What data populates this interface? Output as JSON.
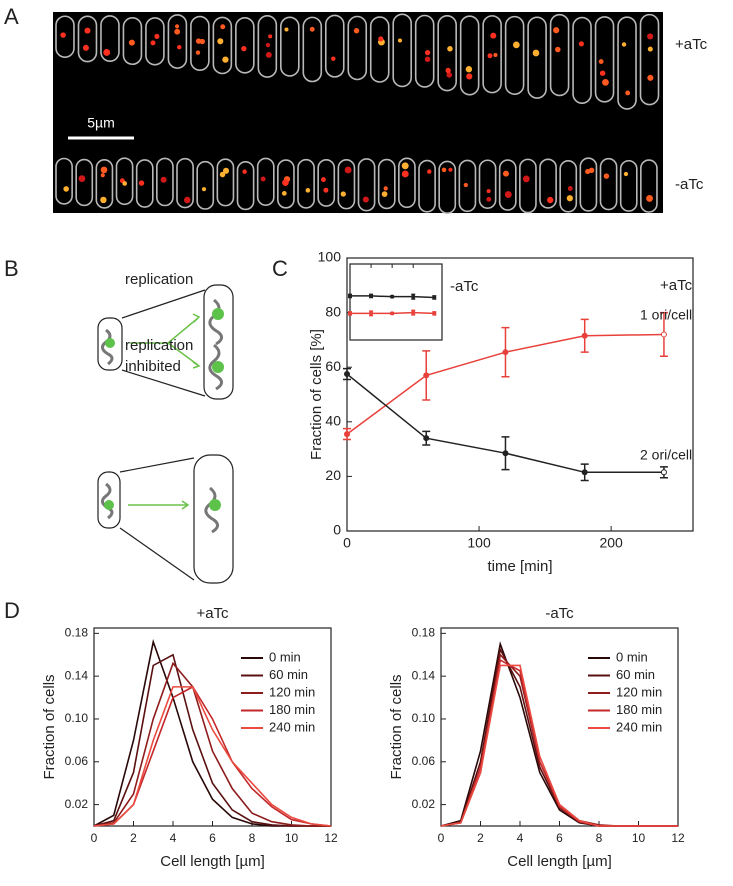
{
  "panel_labels": [
    "A",
    "B",
    "C",
    "D"
  ],
  "panel_a": {
    "conditions": [
      "+aTc",
      "-aTc"
    ],
    "scale_bar": "5µm"
  },
  "panel_b": {
    "top_label": "replication",
    "bottom_label": [
      "replication",
      "inhibited"
    ]
  },
  "chart_data": [
    {
      "type": "line",
      "ylabel": "Fraction of cells [%]",
      "xlabel": "time [min]",
      "annotation": "+aTc",
      "x": [
        0,
        60,
        120,
        180,
        240
      ],
      "xlim": [
        0,
        262
      ],
      "xticks": [
        0,
        100,
        200
      ],
      "ylim": [
        0,
        100
      ],
      "yticks": [
        0,
        20,
        40,
        60,
        80,
        100
      ],
      "series": [
        {
          "name": "1 ori/cell",
          "color": "#e8403a",
          "values": [
            35.5,
            57,
            65.5,
            71.5,
            72
          ],
          "errors": [
            2,
            9,
            9,
            6,
            8
          ]
        },
        {
          "name": "2 ori/cell",
          "color": "#222222",
          "values": [
            57.5,
            34,
            28.5,
            21.5,
            21.5
          ],
          "errors": [
            2,
            2.5,
            6,
            3,
            2
          ]
        }
      ]
    },
    {
      "type": "line",
      "annotation": "-aTc",
      "x": [
        0,
        60,
        120,
        180,
        240
      ],
      "xlim": [
        0,
        262
      ],
      "ylim": [
        0,
        100
      ],
      "series": [
        {
          "color": "#222222",
          "values": [
            58,
            58,
            57,
            57,
            56
          ],
          "errors": [
            2,
            2,
            1,
            3,
            2
          ]
        },
        {
          "color": "#e8403a",
          "values": [
            35,
            35,
            35,
            36,
            35
          ],
          "errors": [
            2,
            3,
            1,
            3,
            2
          ]
        }
      ]
    },
    {
      "type": "line",
      "title": "+aTc",
      "xlabel": "Cell length [µm]",
      "ylabel": "Fraction of cells",
      "x": [
        0,
        1,
        2,
        3,
        4,
        5,
        6,
        7,
        8,
        9,
        10,
        11,
        12
      ],
      "xlim": [
        0,
        12
      ],
      "xticks": [
        0,
        2,
        4,
        6,
        8,
        10,
        12
      ],
      "ylim": [
        0,
        0.185
      ],
      "yticks": [
        0.02,
        0.06,
        {
          "value": 0.1,
          "label": "0.10"
        },
        0.14,
        0.18
      ],
      "legend": "upper right",
      "series": [
        {
          "name": "0 min",
          "color": "#2a0808",
          "values": [
            0,
            0.01,
            0.08,
            0.172,
            0.12,
            0.06,
            0.025,
            0.008,
            0.002,
            0,
            0,
            0,
            0
          ]
        },
        {
          "name": "60 min",
          "color": "#5a1010",
          "values": [
            0,
            0.005,
            0.05,
            0.15,
            0.16,
            0.09,
            0.04,
            0.015,
            0.004,
            0.001,
            0,
            0,
            0
          ]
        },
        {
          "name": "120 min",
          "color": "#8e1c1c",
          "values": [
            0,
            0.003,
            0.03,
            0.1,
            0.152,
            0.13,
            0.07,
            0.035,
            0.012,
            0.004,
            0.001,
            0,
            0
          ]
        },
        {
          "name": "180 min",
          "color": "#c4282a",
          "values": [
            0,
            0.002,
            0.02,
            0.07,
            0.12,
            0.13,
            0.1,
            0.06,
            0.035,
            0.018,
            0.006,
            0.002,
            0
          ]
        },
        {
          "name": "240 min",
          "color": "#ea4a40",
          "values": [
            0,
            0.002,
            0.02,
            0.08,
            0.13,
            0.13,
            0.09,
            0.06,
            0.04,
            0.02,
            0.008,
            0.002,
            0
          ]
        }
      ]
    },
    {
      "type": "line",
      "title": "-aTc",
      "xlabel": "Cell length [µm]",
      "ylabel": "Fraction of cells",
      "x": [
        0,
        1,
        2,
        3,
        4,
        5,
        6,
        7,
        8,
        9,
        10,
        11,
        12
      ],
      "xlim": [
        0,
        12
      ],
      "xticks": [
        0,
        2,
        4,
        6,
        8,
        10,
        12
      ],
      "ylim": [
        0,
        0.185
      ],
      "yticks": [
        0.02,
        0.06,
        {
          "value": 0.1,
          "label": "0.10"
        },
        0.14,
        0.18
      ],
      "legend": "upper right",
      "series": [
        {
          "name": "0 min",
          "color": "#2a0808",
          "values": [
            0,
            0.005,
            0.07,
            0.17,
            0.12,
            0.05,
            0.015,
            0.003,
            0,
            0,
            0,
            0,
            0
          ]
        },
        {
          "name": "60 min",
          "color": "#5a1010",
          "values": [
            0,
            0.004,
            0.06,
            0.165,
            0.13,
            0.055,
            0.017,
            0.004,
            0,
            0,
            0,
            0,
            0
          ]
        },
        {
          "name": "120 min",
          "color": "#8e1c1c",
          "values": [
            0,
            0.003,
            0.05,
            0.16,
            0.14,
            0.06,
            0.02,
            0.005,
            0.001,
            0,
            0,
            0,
            0
          ]
        },
        {
          "name": "180 min",
          "color": "#c4282a",
          "values": [
            0,
            0.003,
            0.055,
            0.155,
            0.145,
            0.06,
            0.018,
            0.004,
            0,
            0,
            0,
            0,
            0
          ]
        },
        {
          "name": "240 min",
          "color": "#ea4a40",
          "values": [
            0,
            0.003,
            0.05,
            0.15,
            0.15,
            0.065,
            0.02,
            0.005,
            0,
            0,
            0,
            0,
            0
          ]
        }
      ]
    }
  ]
}
